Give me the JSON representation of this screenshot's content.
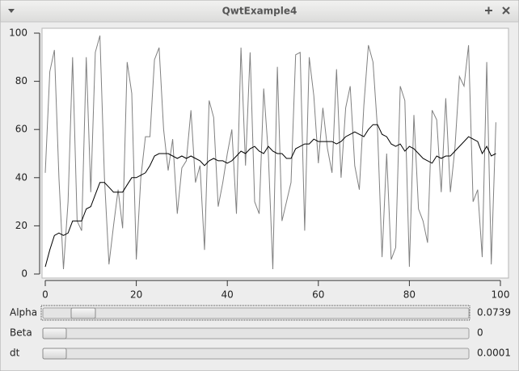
{
  "window": {
    "title": "QwtExample4"
  },
  "chart_data": {
    "type": "line",
    "x": [
      0,
      1,
      2,
      3,
      4,
      5,
      6,
      7,
      8,
      9,
      10,
      11,
      12,
      13,
      14,
      15,
      16,
      17,
      18,
      19,
      20,
      21,
      22,
      23,
      24,
      25,
      26,
      27,
      28,
      29,
      30,
      31,
      32,
      33,
      34,
      35,
      36,
      37,
      38,
      39,
      40,
      41,
      42,
      43,
      44,
      45,
      46,
      47,
      48,
      49,
      50,
      51,
      52,
      53,
      54,
      55,
      56,
      57,
      58,
      59,
      60,
      61,
      62,
      63,
      64,
      65,
      66,
      67,
      68,
      69,
      70,
      71,
      72,
      73,
      74,
      75,
      76,
      77,
      78,
      79,
      80,
      81,
      82,
      83,
      84,
      85,
      86,
      87,
      88,
      89,
      90,
      91,
      92,
      93,
      94,
      95,
      96,
      97,
      98,
      99
    ],
    "series": [
      {
        "color": "#808080",
        "values": [
          42,
          84,
          93,
          40,
          2,
          30,
          90,
          22,
          18,
          90,
          34,
          92,
          99,
          40,
          4,
          20,
          35,
          19,
          88,
          75,
          6,
          40,
          57,
          57,
          89,
          94,
          60,
          43,
          56,
          25,
          44,
          47,
          68,
          38,
          45,
          10,
          72,
          65,
          28,
          38,
          50,
          60,
          25,
          94,
          45,
          92,
          30,
          25,
          77,
          50,
          2,
          86,
          22,
          30,
          38,
          91,
          92,
          18,
          90,
          74,
          46,
          69,
          52,
          42,
          85,
          40,
          69,
          78,
          45,
          35,
          70,
          95,
          88,
          60,
          7,
          50,
          6,
          11,
          78,
          72,
          3,
          66,
          27,
          22,
          13,
          68,
          64,
          34,
          73,
          34,
          52,
          82,
          78,
          95,
          30,
          35,
          7,
          88,
          4,
          63
        ]
      },
      {
        "color": "#000000",
        "values": [
          3,
          10,
          16,
          17,
          16,
          17,
          22,
          22,
          22,
          27,
          28,
          33,
          38,
          38,
          36,
          34,
          34,
          34,
          37,
          40,
          40,
          41,
          42,
          45,
          49,
          50,
          50,
          50,
          49,
          48,
          49,
          48,
          49,
          48,
          47,
          45,
          47,
          48,
          47,
          47,
          46,
          47,
          49,
          51,
          50,
          52,
          53,
          51,
          50,
          53,
          51,
          50,
          50,
          48,
          48,
          52,
          53,
          54,
          54,
          56,
          55,
          55,
          55,
          55,
          54,
          55,
          57,
          58,
          59,
          58,
          57,
          60,
          62,
          62,
          58,
          57,
          54,
          53,
          54,
          51,
          53,
          52,
          50,
          48,
          47,
          46,
          49,
          48,
          49,
          49,
          51,
          53,
          55,
          57,
          56,
          55,
          50,
          53,
          49,
          50
        ]
      }
    ],
    "xlim": [
      0,
      100
    ],
    "xticks": [
      0,
      20,
      40,
      60,
      80,
      100
    ],
    "ylim": [
      0,
      100
    ],
    "yticks": [
      0,
      20,
      40,
      60,
      80,
      100
    ]
  },
  "controls": [
    {
      "label": "Alpha",
      "value": 0.0739
    },
    {
      "label": "Beta",
      "value": 0
    },
    {
      "label": "dt",
      "value": 0.0001
    }
  ]
}
